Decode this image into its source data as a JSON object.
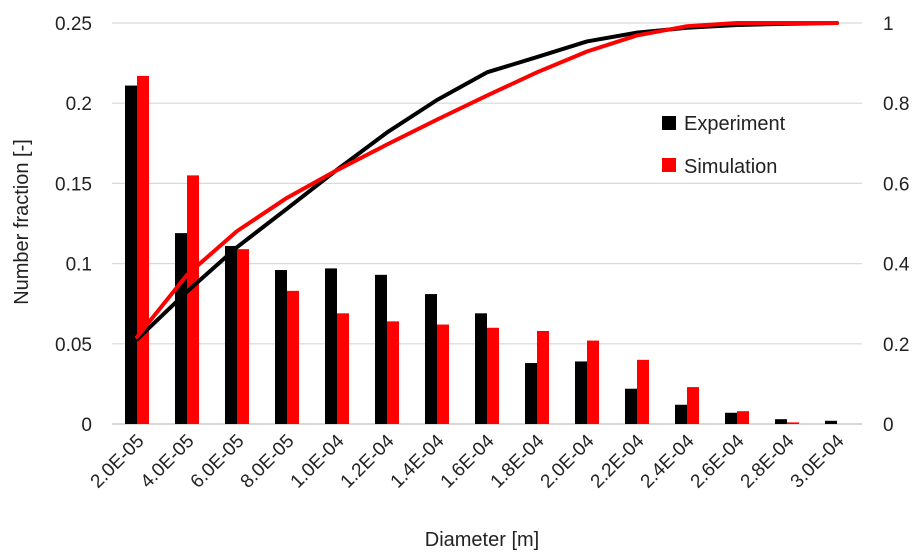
{
  "chart_data": {
    "type": "bar",
    "xlabel": "Diameter [m]",
    "ylabel": "Number fraction [-]",
    "categories": [
      "2.0E-05",
      "4.0E-05",
      "6.0E-05",
      "8.0E-05",
      "1.0E-04",
      "1.2E-04",
      "1.4E-04",
      "1.6E-04",
      "1.8E-04",
      "2.0E-04",
      "2.2E-04",
      "2.4E-04",
      "2.6E-04",
      "2.8E-04",
      "3.0E-04"
    ],
    "ylim": [
      0,
      0.25
    ],
    "y_ticks": [
      "0",
      "0.05",
      "0.1",
      "0.15",
      "0.2",
      "0.25"
    ],
    "y2lim": [
      0,
      1
    ],
    "y2_ticks": [
      "0",
      "0.2",
      "0.4",
      "0.6",
      "0.8",
      "1"
    ],
    "grid": true,
    "legend_position": "right",
    "series": [
      {
        "name": "Experiment",
        "kind": "bar",
        "axis": "left",
        "color": "#000000",
        "values": [
          0.211,
          0.119,
          0.111,
          0.096,
          0.097,
          0.093,
          0.081,
          0.069,
          0.038,
          0.039,
          0.022,
          0.012,
          0.007,
          0.003,
          0.002
        ]
      },
      {
        "name": "Simulation",
        "kind": "bar",
        "axis": "left",
        "color": "#ff0000",
        "values": [
          0.217,
          0.155,
          0.109,
          0.083,
          0.069,
          0.064,
          0.062,
          0.06,
          0.058,
          0.052,
          0.04,
          0.023,
          0.008,
          0.001,
          0.0
        ]
      },
      {
        "kind": "line",
        "axis": "right",
        "color": "#000000",
        "legend_of": "Experiment",
        "values": [
          0.211,
          0.33,
          0.441,
          0.537,
          0.634,
          0.727,
          0.808,
          0.877,
          0.915,
          0.954,
          0.976,
          0.988,
          0.995,
          0.998,
          1.0
        ]
      },
      {
        "kind": "line",
        "axis": "right",
        "color": "#ff0000",
        "legend_of": "Simulation",
        "values": [
          0.217,
          0.372,
          0.481,
          0.564,
          0.633,
          0.697,
          0.759,
          0.819,
          0.877,
          0.929,
          0.969,
          0.992,
          1.0,
          1.0,
          1.0
        ]
      }
    ]
  }
}
